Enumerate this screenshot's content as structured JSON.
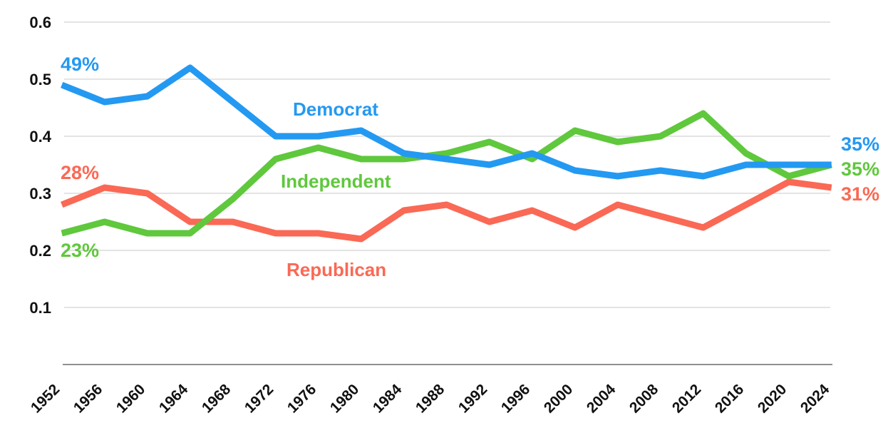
{
  "chart_data": {
    "type": "line",
    "title": "",
    "xlabel": "",
    "ylabel": "",
    "categories": [
      "1952",
      "1956",
      "1960",
      "1964",
      "1968",
      "1972",
      "1976",
      "1980",
      "1984",
      "1988",
      "1992",
      "1996",
      "2000",
      "2004",
      "2008",
      "2012",
      "2016",
      "2020",
      "2024"
    ],
    "series": [
      {
        "name": "Democrat",
        "color": "#2499f1",
        "values": [
          49,
          46,
          47,
          52,
          46,
          40,
          40,
          41,
          37,
          36,
          35,
          37,
          34,
          33,
          34,
          33,
          35,
          35,
          35
        ]
      },
      {
        "name": "Independent",
        "color": "#5fc83c",
        "values": [
          23,
          25,
          23,
          23,
          29,
          36,
          38,
          36,
          36,
          37,
          39,
          36,
          41,
          39,
          40,
          44,
          37,
          33,
          35
        ]
      },
      {
        "name": "Republican",
        "color": "#fa6955",
        "values": [
          28,
          31,
          30,
          25,
          25,
          23,
          23,
          22,
          27,
          28,
          25,
          27,
          24,
          28,
          26,
          24,
          28,
          32,
          31
        ]
      }
    ],
    "y_axis": {
      "ticks": [
        "0.6",
        "0.5",
        "0.4",
        "0.3",
        "0.2",
        "0.1"
      ],
      "tick_values": [
        0.6,
        0.5,
        0.4,
        0.3,
        0.2,
        0.1
      ],
      "min": 0,
      "max": 0.6,
      "unit": "proportion of respondents"
    },
    "x_axis": {
      "range": [
        "1952",
        "2024"
      ],
      "step_years": 4,
      "label_rotation_deg": -45
    },
    "grid": "horizontal",
    "legend": "inline-series-labels",
    "annotations": {
      "start_values": [
        {
          "series": "Democrat",
          "text": "49%"
        },
        {
          "series": "Republican",
          "text": "28%"
        },
        {
          "series": "Independent",
          "text": "23%"
        }
      ],
      "end_values": [
        {
          "series": "Democrat",
          "text": "35%"
        },
        {
          "series": "Independent",
          "text": "35%"
        },
        {
          "series": "Republican",
          "text": "31%"
        }
      ],
      "series_labels": [
        {
          "series": "Democrat",
          "text": "Democrat"
        },
        {
          "series": "Independent",
          "text": "Independent"
        },
        {
          "series": "Republican",
          "text": "Republican"
        }
      ]
    },
    "colors": {
      "democrat_blue": "#2499f1",
      "independent_green": "#5fc83c",
      "republican_red": "#fa6955",
      "gridline": "#dcdcdc",
      "axis_line": "#909090",
      "tick_text": "#111111",
      "background": "#ffffff"
    }
  }
}
